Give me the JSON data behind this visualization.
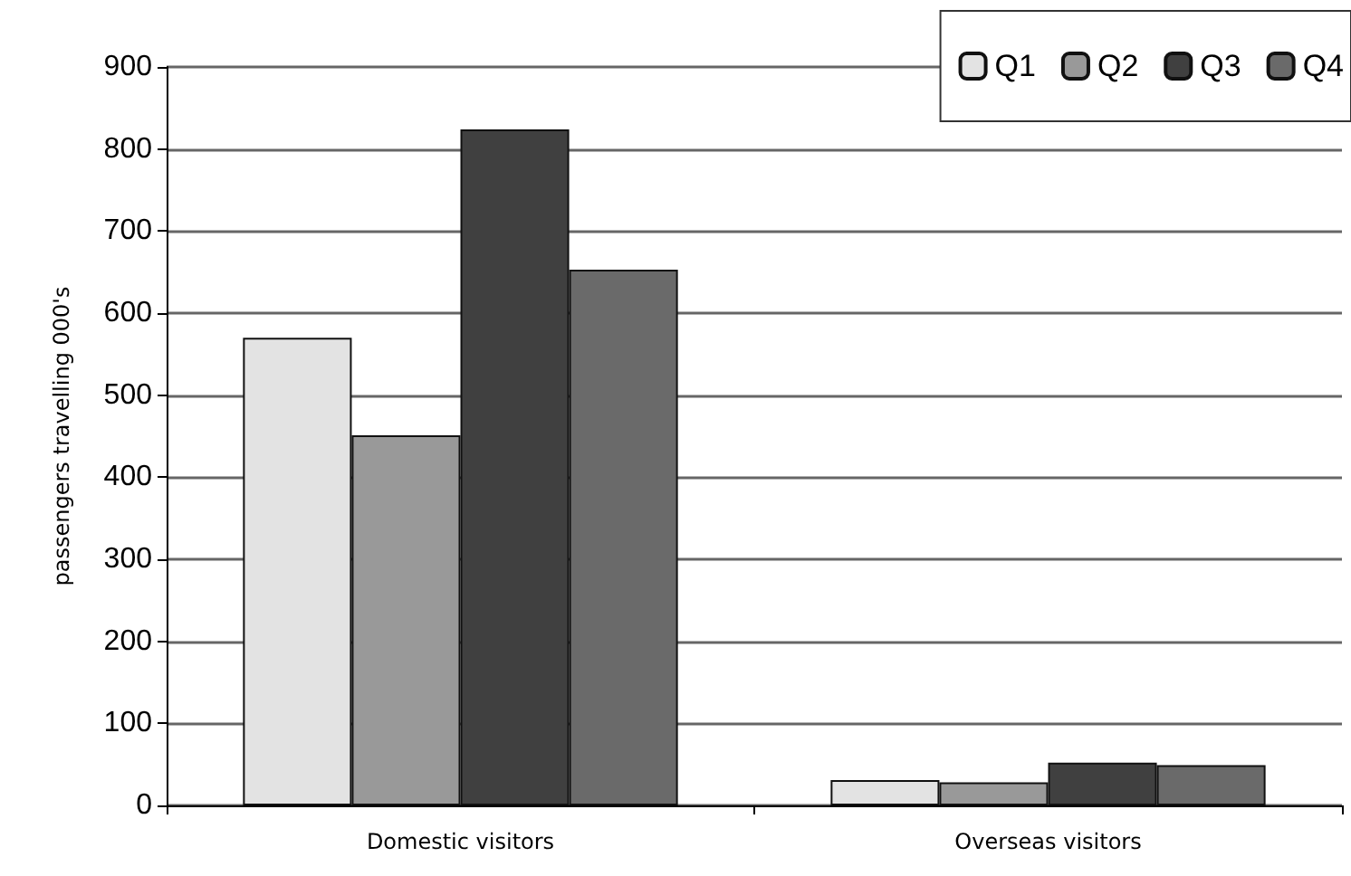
{
  "chart_data": {
    "type": "bar",
    "ylabel": "passengers travelling 000's",
    "categories": [
      "Domestic visitors",
      "Overseas visitors"
    ],
    "series": [
      {
        "name": "Q1",
        "color": "#e3e3e3",
        "values": [
          570,
          31
        ]
      },
      {
        "name": "Q2",
        "color": "#999999",
        "values": [
          451,
          28
        ]
      },
      {
        "name": "Q3",
        "color": "#404040",
        "values": [
          824,
          52
        ]
      },
      {
        "name": "Q4",
        "color": "#6a6a6a",
        "values": [
          653,
          49
        ]
      }
    ],
    "ylim": [
      0,
      900
    ],
    "yticks": [
      0,
      100,
      200,
      300,
      400,
      500,
      600,
      700,
      800,
      900
    ],
    "grid": "y",
    "legend": "top right"
  }
}
